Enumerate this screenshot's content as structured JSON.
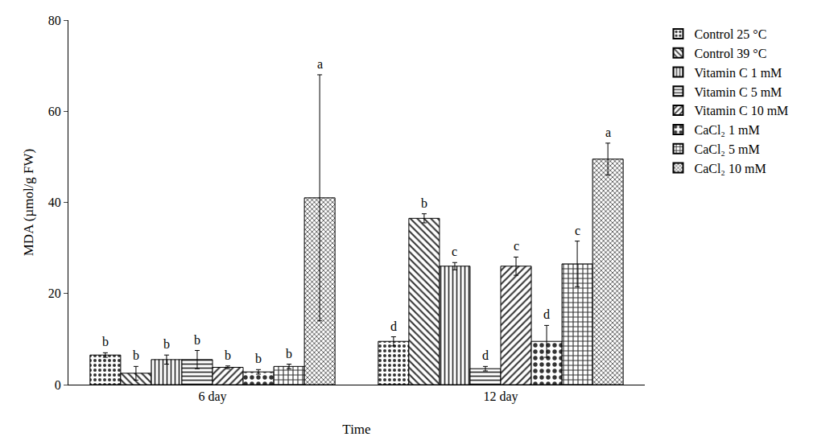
{
  "chart_data": {
    "type": "bar",
    "x_label": "Time",
    "y_label": "MDA (µmol/g FW)",
    "categories": [
      "6 day",
      "12 day"
    ],
    "ylim": [
      0,
      80
    ],
    "yticks": [
      0,
      20,
      40,
      60,
      80
    ],
    "grid": false,
    "legend": "right",
    "series": [
      {
        "name": "Control 25 °C",
        "color": "#333333",
        "values": [
          6.5,
          9.5
        ],
        "errors": [
          0.5,
          1.0
        ],
        "letters": [
          "b",
          "d"
        ]
      },
      {
        "name": "Control 39 °C",
        "color": "#333333",
        "values": [
          2.5,
          36.5
        ],
        "errors": [
          1.5,
          1.0
        ],
        "letters": [
          "b",
          "b"
        ]
      },
      {
        "name": "Vitamin C 1 mM",
        "color": "#333333",
        "values": [
          5.5,
          26.0
        ],
        "errors": [
          1.0,
          0.8
        ],
        "letters": [
          "b",
          "c"
        ]
      },
      {
        "name": "Vitamin C 5 mM",
        "color": "#333333",
        "values": [
          5.5,
          3.5
        ],
        "errors": [
          2.0,
          0.5
        ],
        "letters": [
          "b",
          "d"
        ]
      },
      {
        "name": "Vitamin C 10 mM",
        "color": "#333333",
        "values": [
          3.8,
          26.0
        ],
        "errors": [
          0.3,
          2.0
        ],
        "letters": [
          "b",
          "c"
        ]
      },
      {
        "name": "CaCl₂ 1 mM",
        "color": "#333333",
        "values": [
          2.8,
          9.5
        ],
        "errors": [
          0.5,
          3.5
        ],
        "letters": [
          "b",
          "d"
        ]
      },
      {
        "name": "CaCl₂ 5 mM",
        "color": "#333333",
        "values": [
          4.0,
          26.5
        ],
        "errors": [
          0.5,
          5.0
        ],
        "letters": [
          "b",
          "c"
        ]
      },
      {
        "name": "CaCl₂ 10 mM",
        "color": "#333333",
        "values": [
          41.0,
          49.5
        ],
        "errors": [
          27.0,
          3.5
        ],
        "letters": [
          "a",
          "a"
        ]
      }
    ]
  }
}
